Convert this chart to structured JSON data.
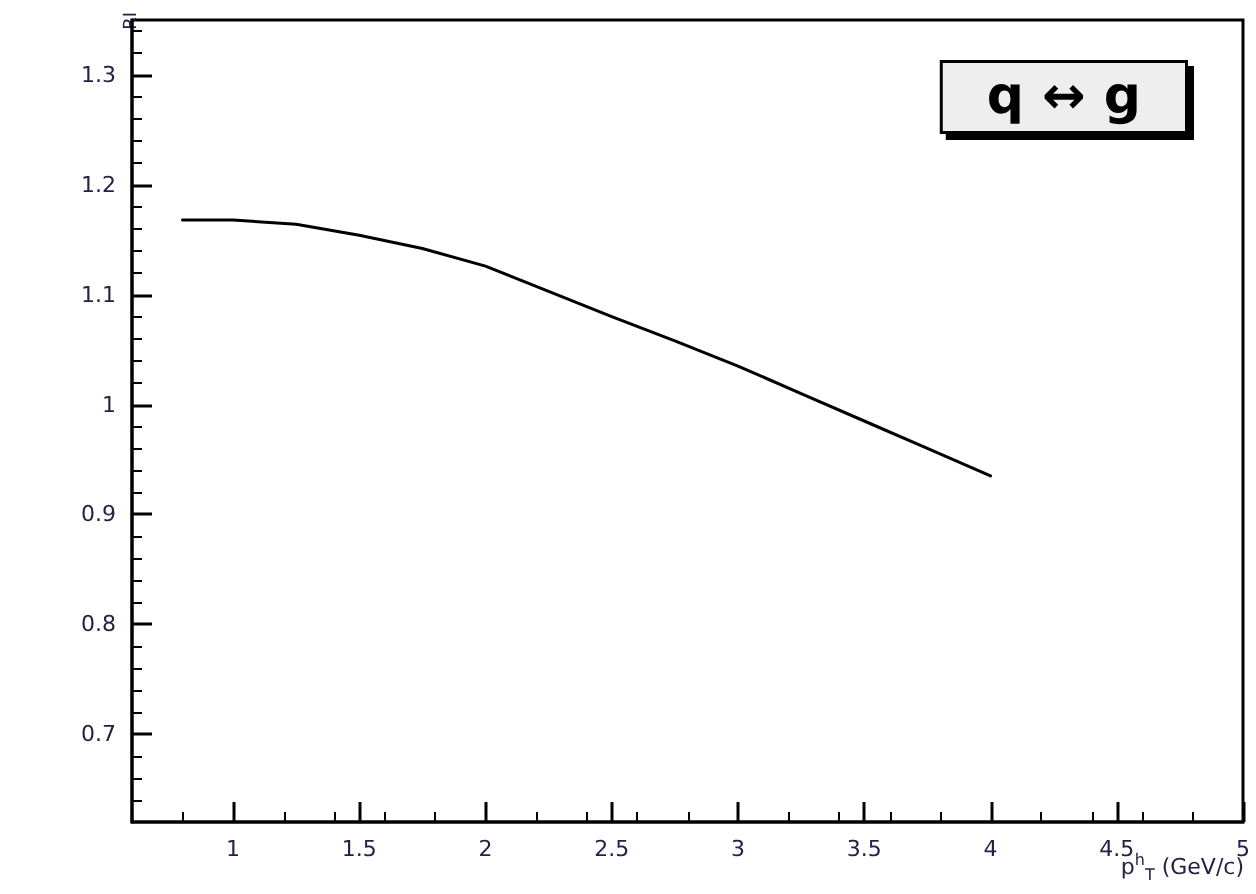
{
  "chart_data": {
    "type": "line",
    "xlabel": "p$^{h}$$_{T}$ (GeV/c)",
    "ylabel": "RI",
    "x": [
      0.8,
      1.0,
      1.25,
      1.5,
      1.75,
      2.0,
      2.25,
      2.5,
      2.75,
      3.0,
      3.25,
      3.5,
      3.75,
      4.0
    ],
    "series": [
      {
        "color": "#000000",
        "values": [
          1.168,
          1.168,
          1.164,
          1.154,
          1.142,
          1.126,
          1.103,
          1.08,
          1.058,
          1.035,
          1.01,
          0.985,
          0.96,
          0.935
        ]
      }
    ],
    "xlim": [
      0.6,
      5
    ],
    "ylim": [
      0.62,
      1.35
    ],
    "xticks": [
      1,
      1.5,
      2,
      2.5,
      3,
      3.5,
      4,
      4.5,
      5
    ],
    "yticks": [
      0.7,
      0.8,
      0.9,
      1,
      1.1,
      1.2,
      1.3
    ],
    "annotations": [
      "q ↔ g"
    ],
    "grid": false,
    "marker": "none",
    "line_style": "solid"
  }
}
